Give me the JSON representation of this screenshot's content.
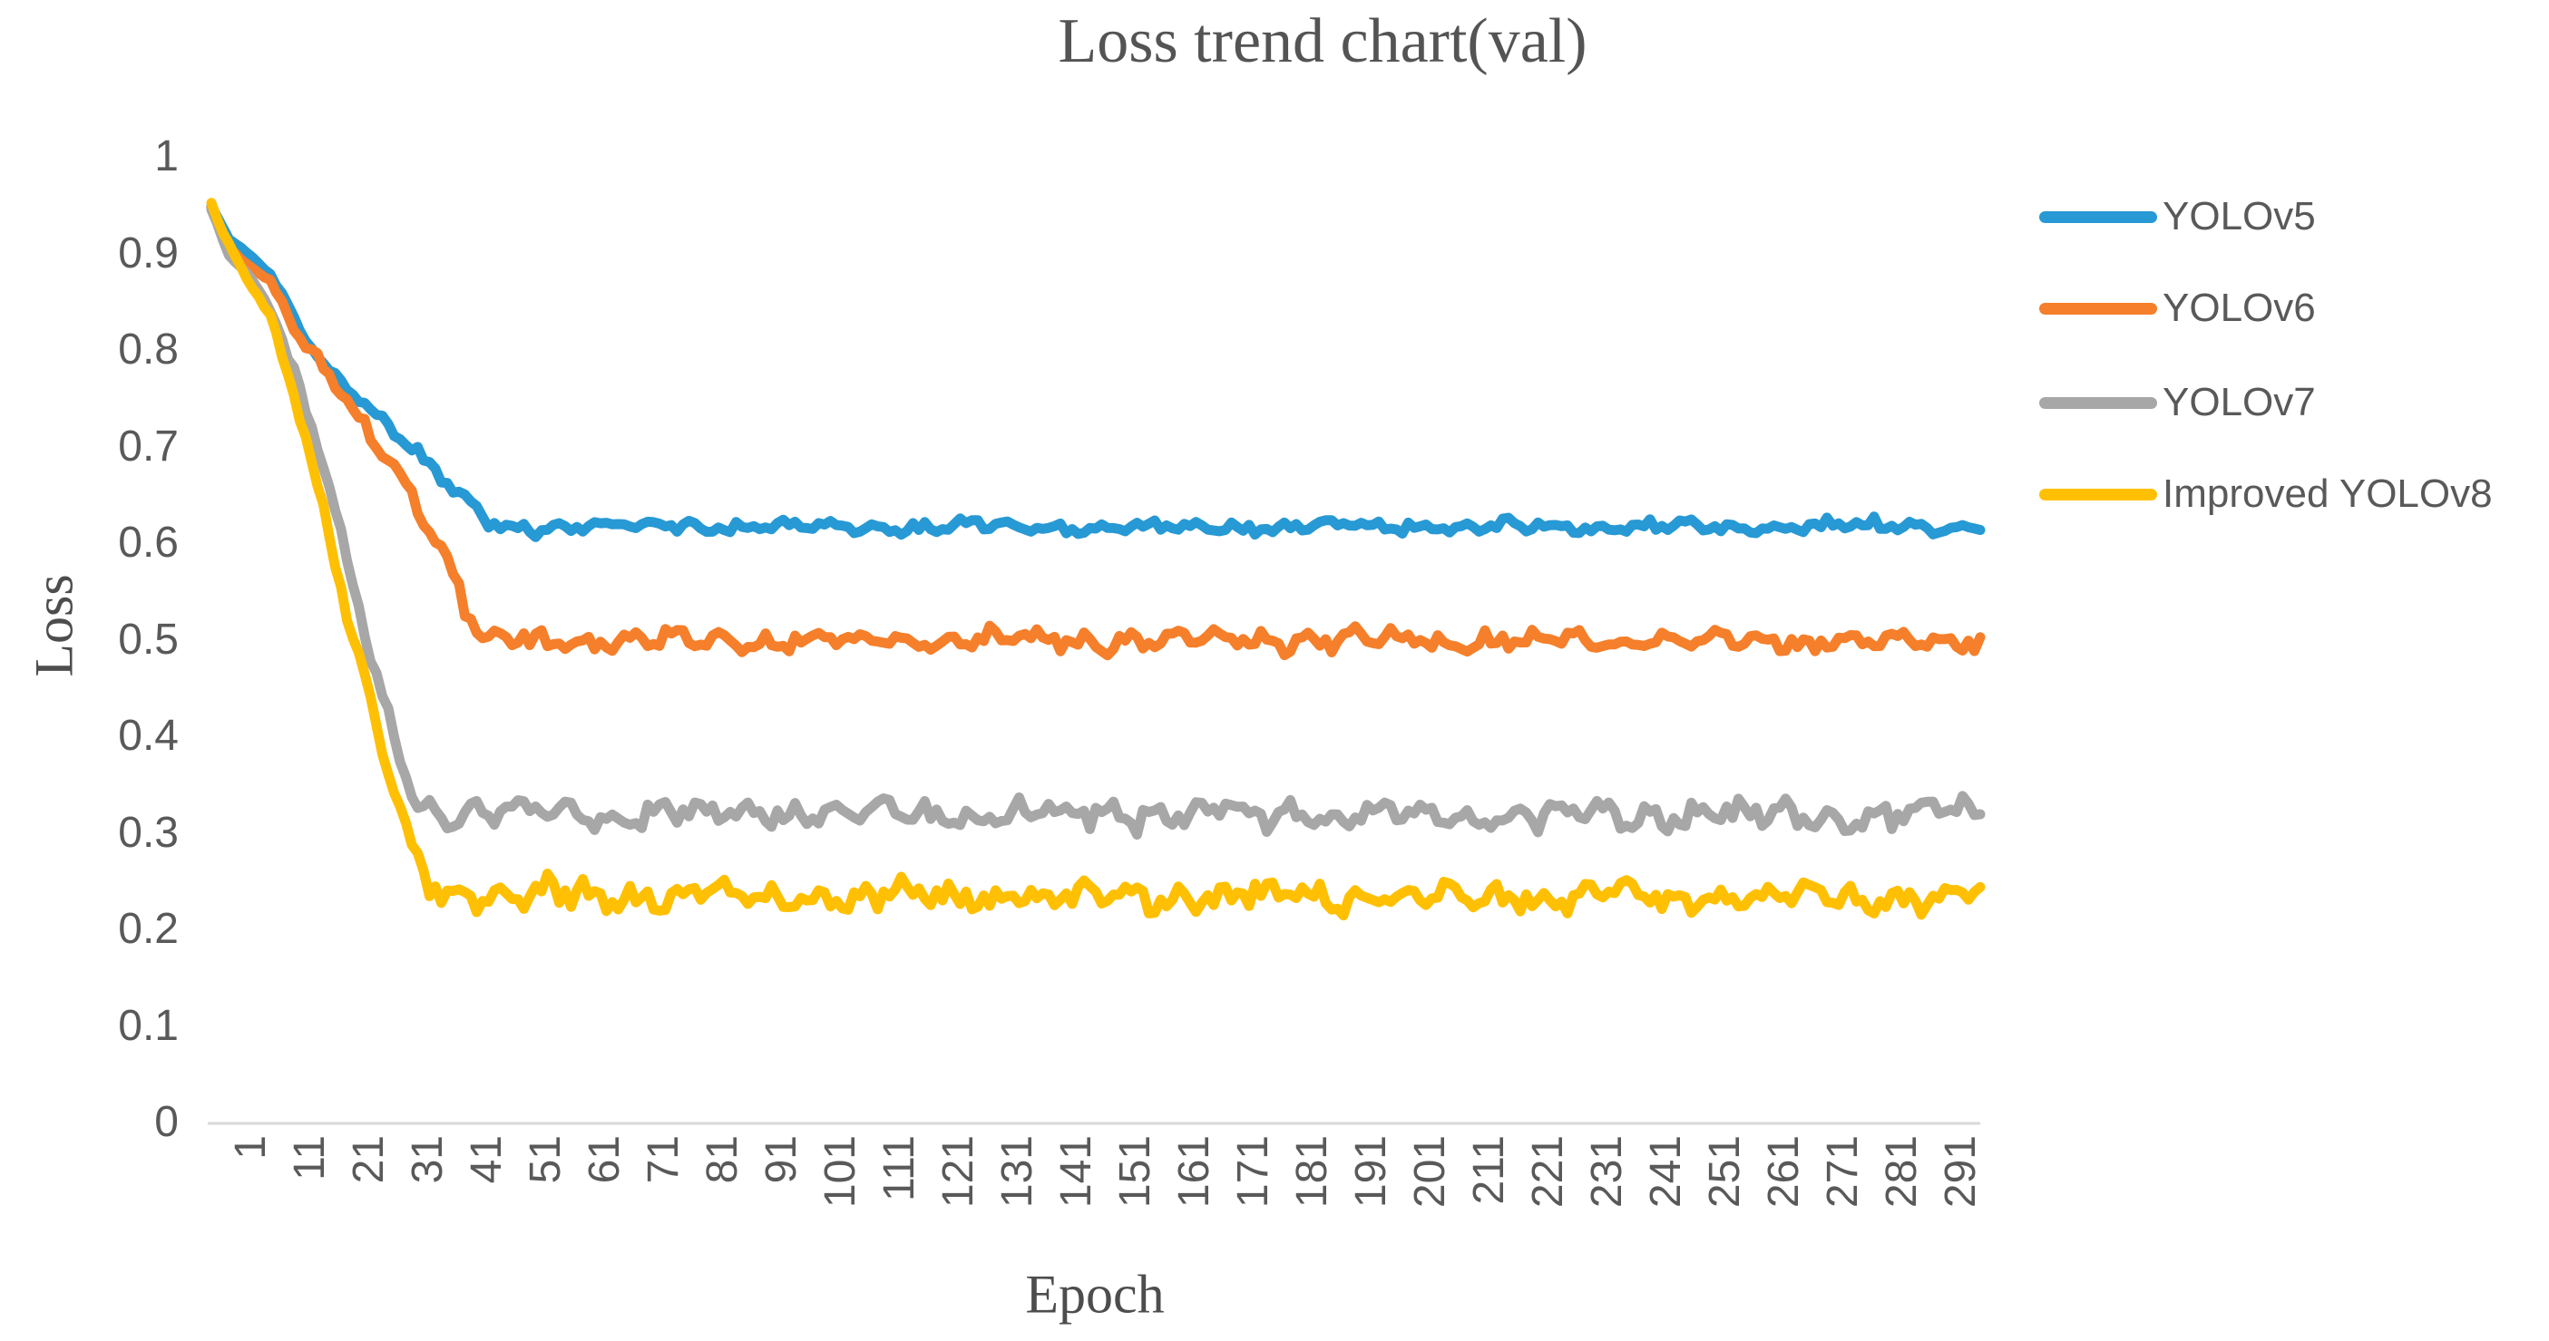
{
  "chart_data": {
    "type": "line",
    "title": "Loss trend chart(val)",
    "xlabel": "Epoch",
    "ylabel": "Loss",
    "x_range": [
      1,
      301
    ],
    "ylim": [
      0,
      1
    ],
    "grid": false,
    "legend_position": "right",
    "axis_line_color": "#D9D9D9",
    "text_color": "#595959",
    "y_ticks": [
      {
        "label": "1",
        "value": 1.0
      },
      {
        "label": "0.9",
        "value": 0.9
      },
      {
        "label": "0.8",
        "value": 0.8
      },
      {
        "label": "0.7",
        "value": 0.7
      },
      {
        "label": "0.6",
        "value": 0.6
      },
      {
        "label": "0.5",
        "value": 0.5
      },
      {
        "label": "0.4",
        "value": 0.4
      },
      {
        "label": "0.3",
        "value": 0.3
      },
      {
        "label": "0.2",
        "value": 0.2
      },
      {
        "label": "0.1",
        "value": 0.1
      },
      {
        "label": "0",
        "value": 0.0
      }
    ],
    "x_ticks": [
      1,
      11,
      21,
      31,
      41,
      51,
      61,
      71,
      81,
      91,
      101,
      111,
      121,
      131,
      141,
      151,
      161,
      171,
      181,
      191,
      201,
      211,
      221,
      231,
      241,
      251,
      261,
      271,
      281,
      291
    ],
    "series": [
      {
        "name": "YOLOv5",
        "color": "#2799D4",
        "plateau": 0.617,
        "noise_amplitude": 0.008,
        "keypoints": [
          [
            1,
            0.95
          ],
          [
            4,
            0.915
          ],
          [
            8,
            0.895
          ],
          [
            11,
            0.878
          ],
          [
            14,
            0.845
          ],
          [
            16,
            0.82
          ],
          [
            20,
            0.785
          ],
          [
            24,
            0.762
          ],
          [
            28,
            0.742
          ],
          [
            31,
            0.725
          ],
          [
            34,
            0.705
          ],
          [
            38,
            0.68
          ],
          [
            42,
            0.655
          ],
          [
            45,
            0.638
          ],
          [
            48,
            0.622
          ],
          [
            52,
            0.617
          ],
          [
            301,
            0.617
          ]
        ]
      },
      {
        "name": "YOLOv6",
        "color": "#F57F2A",
        "plateau": 0.499,
        "noise_amplitude": 0.012,
        "keypoints": [
          [
            1,
            0.948
          ],
          [
            4,
            0.905
          ],
          [
            8,
            0.885
          ],
          [
            11,
            0.87
          ],
          [
            14,
            0.838
          ],
          [
            16,
            0.81
          ],
          [
            19,
            0.788
          ],
          [
            22,
            0.763
          ],
          [
            25,
            0.738
          ],
          [
            28,
            0.712
          ],
          [
            31,
            0.69
          ],
          [
            34,
            0.662
          ],
          [
            37,
            0.63
          ],
          [
            40,
            0.595
          ],
          [
            42,
            0.565
          ],
          [
            44,
            0.532
          ],
          [
            46,
            0.508
          ],
          [
            48,
            0.5
          ],
          [
            301,
            0.498
          ]
        ]
      },
      {
        "name": "YOLOv7",
        "color": "#A7A7A7",
        "plateau": 0.318,
        "noise_amplitude": 0.017,
        "keypoints": [
          [
            1,
            0.945
          ],
          [
            4,
            0.9
          ],
          [
            8,
            0.872
          ],
          [
            11,
            0.845
          ],
          [
            13,
            0.81
          ],
          [
            15,
            0.778
          ],
          [
            17,
            0.74
          ],
          [
            19,
            0.7
          ],
          [
            21,
            0.65
          ],
          [
            23,
            0.6
          ],
          [
            25,
            0.552
          ],
          [
            27,
            0.505
          ],
          [
            29,
            0.458
          ],
          [
            31,
            0.415
          ],
          [
            33,
            0.378
          ],
          [
            35,
            0.348
          ],
          [
            37,
            0.33
          ],
          [
            40,
            0.32
          ],
          [
            301,
            0.318
          ]
        ]
      },
      {
        "name": "Improved YOLOv8",
        "color": "#FFC003",
        "plateau": 0.235,
        "noise_amplitude": 0.017,
        "keypoints": [
          [
            1,
            0.952
          ],
          [
            3,
            0.92
          ],
          [
            6,
            0.885
          ],
          [
            9,
            0.855
          ],
          [
            11,
            0.835
          ],
          [
            13,
            0.795
          ],
          [
            15,
            0.755
          ],
          [
            17,
            0.71
          ],
          [
            19,
            0.66
          ],
          [
            21,
            0.61
          ],
          [
            23,
            0.558
          ],
          [
            25,
            0.505
          ],
          [
            27,
            0.455
          ],
          [
            29,
            0.405
          ],
          [
            31,
            0.36
          ],
          [
            33,
            0.318
          ],
          [
            35,
            0.283
          ],
          [
            37,
            0.258
          ],
          [
            40,
            0.24
          ],
          [
            44,
            0.235
          ],
          [
            301,
            0.233
          ]
        ]
      }
    ]
  }
}
